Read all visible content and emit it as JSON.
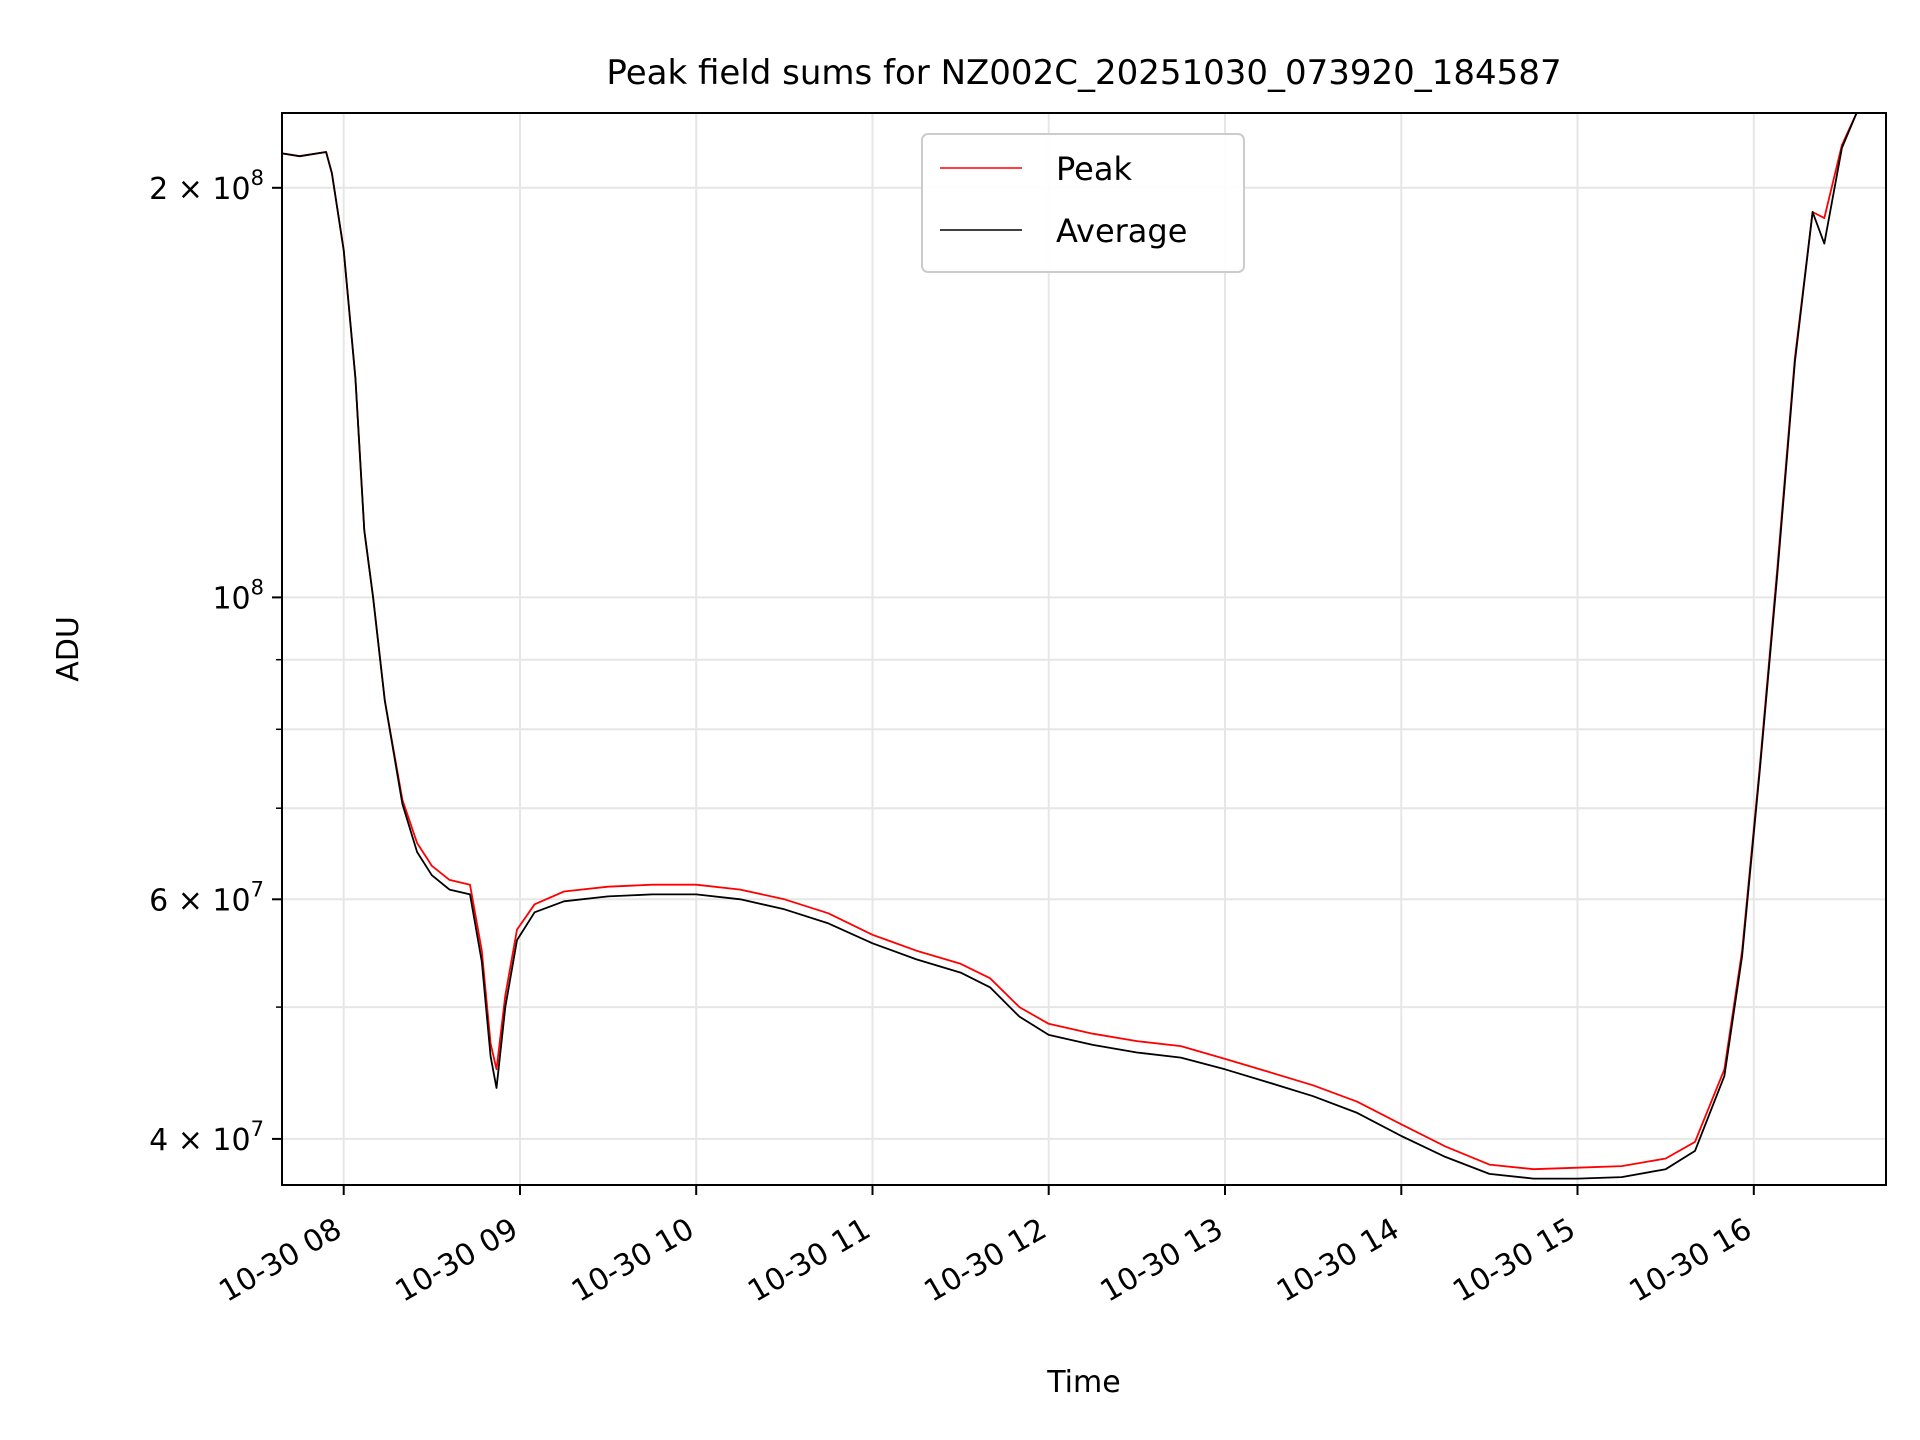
{
  "chart_data": {
    "type": "line",
    "title": "Peak field sums for NZ002C_20251030_073920_184587",
    "xlabel": "Time",
    "ylabel": "ADU",
    "y_scale": "log",
    "grid": true,
    "legend_position": "top-center",
    "x_range": [
      "2025-10-30 07:39",
      "2025-10-30 16:45"
    ],
    "y_range": [
      37000000,
      227000000
    ],
    "x_ticks": [
      {
        "t": "2025-10-30 08:00",
        "label": "10-30 08"
      },
      {
        "t": "2025-10-30 09:00",
        "label": "10-30 09"
      },
      {
        "t": "2025-10-30 10:00",
        "label": "10-30 10"
      },
      {
        "t": "2025-10-30 11:00",
        "label": "10-30 11"
      },
      {
        "t": "2025-10-30 12:00",
        "label": "10-30 12"
      },
      {
        "t": "2025-10-30 13:00",
        "label": "10-30 13"
      },
      {
        "t": "2025-10-30 14:00",
        "label": "10-30 14"
      },
      {
        "t": "2025-10-30 15:00",
        "label": "10-30 15"
      },
      {
        "t": "2025-10-30 16:00",
        "label": "10-30 16"
      }
    ],
    "y_major_ticks": [
      {
        "value": 40000000,
        "mantissa": "4",
        "times": "×",
        "base": "10",
        "exp": "7"
      },
      {
        "value": 60000000,
        "mantissa": "6",
        "times": "×",
        "base": "10",
        "exp": "7"
      },
      {
        "value": 100000000,
        "mantissa": "",
        "times": "",
        "base": "10",
        "exp": "8"
      },
      {
        "value": 200000000,
        "mantissa": "2",
        "times": "×",
        "base": "10",
        "exp": "8"
      }
    ],
    "y_minor_ticks": [
      50000000,
      70000000,
      80000000,
      90000000
    ],
    "series": [
      {
        "name": "Peak",
        "color": "#ff0000",
        "points": [
          [
            "2025-10-30 07:39",
            212000000
          ],
          [
            "2025-10-30 07:45",
            211000000
          ],
          [
            "2025-10-30 07:54",
            212500000
          ],
          [
            "2025-10-30 07:56",
            205000000
          ],
          [
            "2025-10-30 08:00",
            180000000
          ],
          [
            "2025-10-30 08:04",
            145000000
          ],
          [
            "2025-10-30 08:07",
            112000000
          ],
          [
            "2025-10-30 08:10",
            100000000
          ],
          [
            "2025-10-30 08:14",
            84000000
          ],
          [
            "2025-10-30 08:20",
            71000000
          ],
          [
            "2025-10-30 08:25",
            66000000
          ],
          [
            "2025-10-30 08:30",
            63500000
          ],
          [
            "2025-10-30 08:36",
            62000000
          ],
          [
            "2025-10-30 08:43",
            61500000
          ],
          [
            "2025-10-30 08:47",
            55000000
          ],
          [
            "2025-10-30 08:50",
            47000000
          ],
          [
            "2025-10-30 08:52",
            45000000
          ],
          [
            "2025-10-30 08:55",
            51000000
          ],
          [
            "2025-10-30 08:59",
            57000000
          ],
          [
            "2025-10-30 09:05",
            59500000
          ],
          [
            "2025-10-30 09:15",
            60800000
          ],
          [
            "2025-10-30 09:30",
            61300000
          ],
          [
            "2025-10-30 09:45",
            61500000
          ],
          [
            "2025-10-30 10:00",
            61500000
          ],
          [
            "2025-10-30 10:15",
            61000000
          ],
          [
            "2025-10-30 10:30",
            60000000
          ],
          [
            "2025-10-30 10:45",
            58600000
          ],
          [
            "2025-10-30 11:00",
            56500000
          ],
          [
            "2025-10-30 11:15",
            55000000
          ],
          [
            "2025-10-30 11:30",
            53800000
          ],
          [
            "2025-10-30 11:40",
            52500000
          ],
          [
            "2025-10-30 11:50",
            50000000
          ],
          [
            "2025-10-30 12:00",
            48600000
          ],
          [
            "2025-10-30 12:15",
            47800000
          ],
          [
            "2025-10-30 12:30",
            47200000
          ],
          [
            "2025-10-30 12:45",
            46800000
          ],
          [
            "2025-10-30 13:00",
            45800000
          ],
          [
            "2025-10-30 13:15",
            44800000
          ],
          [
            "2025-10-30 13:30",
            43800000
          ],
          [
            "2025-10-30 13:45",
            42600000
          ],
          [
            "2025-10-30 14:00",
            41000000
          ],
          [
            "2025-10-30 14:15",
            39500000
          ],
          [
            "2025-10-30 14:30",
            38300000
          ],
          [
            "2025-10-30 14:45",
            38000000
          ],
          [
            "2025-10-30 15:00",
            38100000
          ],
          [
            "2025-10-30 15:15",
            38200000
          ],
          [
            "2025-10-30 15:30",
            38700000
          ],
          [
            "2025-10-30 15:40",
            39800000
          ],
          [
            "2025-10-30 15:50",
            45000000
          ],
          [
            "2025-10-30 15:56",
            55000000
          ],
          [
            "2025-10-30 16:02",
            75000000
          ],
          [
            "2025-10-30 16:08",
            105000000
          ],
          [
            "2025-10-30 16:14",
            150000000
          ],
          [
            "2025-10-30 16:20",
            192000000
          ],
          [
            "2025-10-30 16:24",
            190000000
          ],
          [
            "2025-10-30 16:30",
            215000000
          ],
          [
            "2025-10-30 16:35",
            227000000
          ]
        ]
      },
      {
        "name": "Average",
        "color": "#000000",
        "points": [
          [
            "2025-10-30 07:39",
            212000000
          ],
          [
            "2025-10-30 07:45",
            211000000
          ],
          [
            "2025-10-30 07:54",
            212500000
          ],
          [
            "2025-10-30 07:56",
            205000000
          ],
          [
            "2025-10-30 08:00",
            180000000
          ],
          [
            "2025-10-30 08:04",
            145000000
          ],
          [
            "2025-10-30 08:07",
            112000000
          ],
          [
            "2025-10-30 08:10",
            100000000
          ],
          [
            "2025-10-30 08:14",
            84000000
          ],
          [
            "2025-10-30 08:20",
            70500000
          ],
          [
            "2025-10-30 08:25",
            65000000
          ],
          [
            "2025-10-30 08:30",
            62500000
          ],
          [
            "2025-10-30 08:36",
            61000000
          ],
          [
            "2025-10-30 08:43",
            60500000
          ],
          [
            "2025-10-30 08:47",
            54000000
          ],
          [
            "2025-10-30 08:50",
            46000000
          ],
          [
            "2025-10-30 08:52",
            43600000
          ],
          [
            "2025-10-30 08:55",
            50000000
          ],
          [
            "2025-10-30 08:59",
            56000000
          ],
          [
            "2025-10-30 09:05",
            58700000
          ],
          [
            "2025-10-30 09:15",
            59800000
          ],
          [
            "2025-10-30 09:30",
            60300000
          ],
          [
            "2025-10-30 09:45",
            60500000
          ],
          [
            "2025-10-30 10:00",
            60500000
          ],
          [
            "2025-10-30 10:15",
            60000000
          ],
          [
            "2025-10-30 10:30",
            59000000
          ],
          [
            "2025-10-30 10:45",
            57600000
          ],
          [
            "2025-10-30 11:00",
            55700000
          ],
          [
            "2025-10-30 11:15",
            54200000
          ],
          [
            "2025-10-30 11:30",
            53000000
          ],
          [
            "2025-10-30 11:40",
            51700000
          ],
          [
            "2025-10-30 11:50",
            49200000
          ],
          [
            "2025-10-30 12:00",
            47700000
          ],
          [
            "2025-10-30 12:15",
            46900000
          ],
          [
            "2025-10-30 12:30",
            46300000
          ],
          [
            "2025-10-30 12:45",
            45900000
          ],
          [
            "2025-10-30 13:00",
            45000000
          ],
          [
            "2025-10-30 13:15",
            44000000
          ],
          [
            "2025-10-30 13:30",
            43000000
          ],
          [
            "2025-10-30 13:45",
            41800000
          ],
          [
            "2025-10-30 14:00",
            40200000
          ],
          [
            "2025-10-30 14:15",
            38800000
          ],
          [
            "2025-10-30 14:30",
            37700000
          ],
          [
            "2025-10-30 14:45",
            37400000
          ],
          [
            "2025-10-30 15:00",
            37400000
          ],
          [
            "2025-10-30 15:15",
            37500000
          ],
          [
            "2025-10-30 15:30",
            38000000
          ],
          [
            "2025-10-30 15:40",
            39200000
          ],
          [
            "2025-10-30 15:50",
            44500000
          ],
          [
            "2025-10-30 15:56",
            54500000
          ],
          [
            "2025-10-30 16:02",
            74500000
          ],
          [
            "2025-10-30 16:08",
            104000000
          ],
          [
            "2025-10-30 16:14",
            149000000
          ],
          [
            "2025-10-30 16:20",
            192000000
          ],
          [
            "2025-10-30 16:24",
            182000000
          ],
          [
            "2025-10-30 16:30",
            214000000
          ],
          [
            "2025-10-30 16:35",
            227000000
          ]
        ]
      }
    ]
  }
}
